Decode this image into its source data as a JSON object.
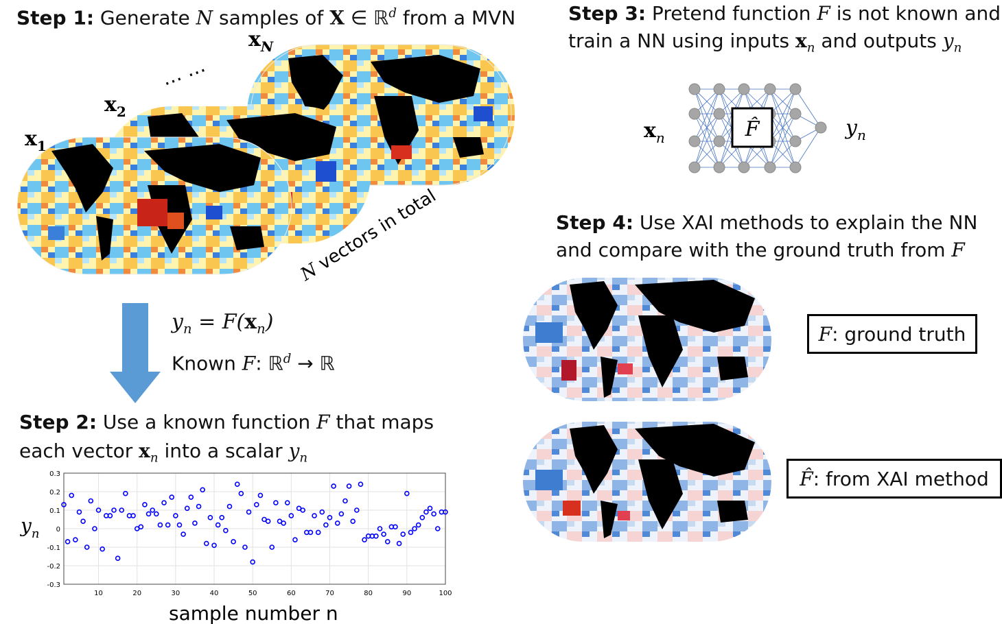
{
  "step1": {
    "label": "Step 1:",
    "pre": "Generate",
    "N": "N",
    "mid": "samples of",
    "X": "X",
    "in_R": "∈ ℝ",
    "d": "d",
    "post": "from a MVN"
  },
  "maps": {
    "x1": "x",
    "sub1": "1",
    "x2": "x",
    "sub2": "2",
    "xN": "x",
    "subN": "N",
    "dots": "…  …",
    "total_N": "N",
    "total_text": "vectors in total"
  },
  "formula": {
    "lhs": "y",
    "lhs_sub": "n",
    "eq": "= F(",
    "x": "x",
    "x_sub": "n",
    "close": ")",
    "known": "Known",
    "F": "F",
    "colon": ": ℝ",
    "d": "d",
    "arrow": " → ℝ"
  },
  "step2": {
    "label": "Step 2:",
    "line1_pre": "Use a known function",
    "line1_F": "F",
    "line1_post": "that maps",
    "line2_pre": "each vector",
    "line2_x": "x",
    "line2_xsub": "n",
    "line2_mid": "into a scalar",
    "line2_y": "y",
    "line2_ysub": "n"
  },
  "step3": {
    "label": "Step 3:",
    "line1_pre": "Pretend function",
    "line1_F": "F",
    "line1_post": "is not known and",
    "line2_pre": "train a NN using inputs",
    "line2_x": "x",
    "line2_xsub": "n",
    "line2_mid": "and outputs",
    "line2_y": "y",
    "line2_ysub": "n"
  },
  "nn": {
    "input": "x",
    "input_sub": "n",
    "output": "y",
    "output_sub": "n",
    "box": "F̂"
  },
  "step4": {
    "label": "Step 4:",
    "line1": "Use XAI methods to explain the NN",
    "line2_pre": "and compare with the ground truth from",
    "line2_F": "F"
  },
  "legend": {
    "truth_F": "F",
    "truth_text": ": ground truth",
    "xai_F": "F̂",
    "xai_text": ": from XAI method"
  },
  "chart_data": {
    "type": "scatter",
    "xlabel": "sample number n",
    "ylabel": "y",
    "ylabel_sub": "n",
    "xlim": [
      1,
      100
    ],
    "ylim": [
      -0.3,
      0.3
    ],
    "xticks": [
      10,
      20,
      30,
      40,
      50,
      60,
      70,
      80,
      90,
      100
    ],
    "yticks": [
      -0.3,
      -0.2,
      -0.1,
      0,
      0.1,
      0.2,
      0.3
    ],
    "ytick_labels": [
      "-0.3",
      "-0.2",
      "-0.1",
      "0",
      "0.1",
      "0.2",
      "0.3"
    ],
    "grid": true,
    "marker_color": "#0000ff",
    "x": [
      1,
      2,
      3,
      4,
      5,
      6,
      7,
      8,
      9,
      10,
      11,
      12,
      13,
      14,
      15,
      16,
      17,
      18,
      19,
      20,
      21,
      22,
      23,
      24,
      25,
      26,
      27,
      28,
      29,
      30,
      31,
      32,
      33,
      34,
      35,
      36,
      37,
      38,
      39,
      40,
      41,
      42,
      43,
      44,
      45,
      46,
      47,
      48,
      49,
      50,
      51,
      52,
      53,
      54,
      55,
      56,
      57,
      58,
      59,
      60,
      61,
      62,
      63,
      64,
      65,
      66,
      67,
      68,
      69,
      70,
      71,
      72,
      73,
      74,
      75,
      76,
      77,
      78,
      79,
      80,
      81,
      82,
      83,
      84,
      85,
      86,
      87,
      88,
      89,
      90,
      91,
      92,
      93,
      94,
      95,
      96,
      97,
      98,
      99,
      100
    ],
    "y": [
      0.13,
      -0.07,
      0.18,
      -0.06,
      0.09,
      0.04,
      -0.1,
      0.15,
      0.0,
      0.1,
      -0.11,
      0.07,
      0.07,
      0.1,
      -0.16,
      0.1,
      0.19,
      0.07,
      0.07,
      0.0,
      0.01,
      0.13,
      0.08,
      0.1,
      0.08,
      0.02,
      0.14,
      0.02,
      0.17,
      0.07,
      0.02,
      -0.03,
      0.11,
      0.17,
      0.03,
      0.12,
      0.21,
      -0.08,
      0.06,
      -0.09,
      0.02,
      0.06,
      -0.01,
      0.12,
      -0.07,
      0.24,
      0.19,
      -0.1,
      0.09,
      -0.18,
      0.13,
      0.18,
      0.05,
      0.04,
      -0.1,
      0.14,
      0.04,
      0.03,
      0.14,
      0.07,
      -0.06,
      0.11,
      0.1,
      -0.02,
      -0.02,
      0.07,
      -0.02,
      0.09,
      0.02,
      0.06,
      0.23,
      0.03,
      0.08,
      0.15,
      0.23,
      0.04,
      0.1,
      0.24,
      -0.06,
      -0.04,
      -0.04,
      -0.04,
      0.0,
      -0.03,
      -0.07,
      0.01,
      0.01,
      -0.08,
      -0.03,
      0.19,
      -0.02,
      0.0,
      0.02,
      0.06,
      0.09,
      0.11,
      0.08,
      0.0,
      0.09,
      0.09
    ]
  },
  "colors": {
    "arrow": "#5b9bd5",
    "nn_node": "#a6a6a6",
    "nn_edge": "#4472c4"
  }
}
